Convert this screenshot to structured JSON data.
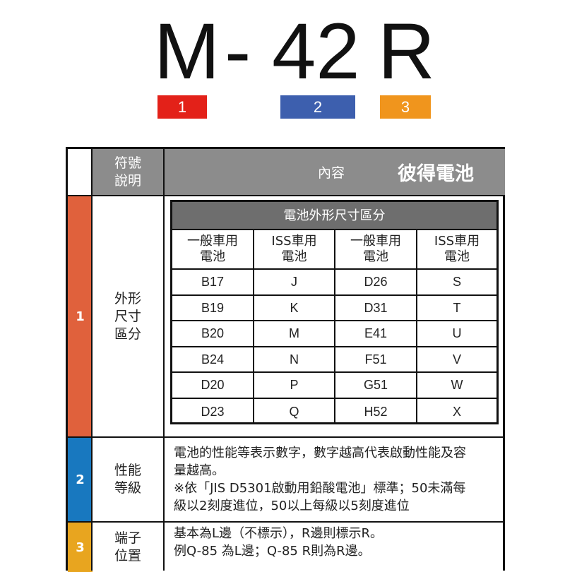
{
  "title": {
    "parts": [
      "M",
      "-",
      "42",
      "R"
    ]
  },
  "boxes": [
    {
      "label": "1",
      "color": "#e32119"
    },
    {
      "label": "2",
      "color": "#3d5fae"
    },
    {
      "label": "3",
      "color": "#f0951d"
    }
  ],
  "header": {
    "symbol_label_1": "符號",
    "symbol_label_2": "說明",
    "content_label": "內容",
    "brand": "彼得電池"
  },
  "rows": [
    {
      "num": "1",
      "color": "#e0613c",
      "label": [
        "外形",
        "尺寸",
        "區分"
      ]
    },
    {
      "num": "2",
      "color": "#1878bf",
      "label": [
        "性能",
        "等級"
      ],
      "lines": [
        "電池的性能等表示數字，數字越高代表啟動性能及容",
        "量越高。",
        "※依「JIS D5301啟動用鉛酸電池」標準；50未滿每",
        "級以2刻度進位，50以上每級以5刻度進位"
      ]
    },
    {
      "num": "3",
      "color": "#e8a51f",
      "label": [
        "端子",
        "位置"
      ],
      "lines": [
        "基本為L邊（不標示），R邊則標示R。",
        "例Q-85 為L邊；Q-85 R則為R邊。"
      ]
    }
  ],
  "size_table": {
    "title": "電池外形尺寸區分",
    "columns": [
      [
        "一般車用",
        "電池"
      ],
      [
        "ISS車用",
        "電池"
      ],
      [
        "一般車用",
        "電池"
      ],
      [
        "ISS車用",
        "電池"
      ]
    ],
    "rows": [
      [
        "B17",
        "J",
        "D26",
        "S"
      ],
      [
        "B19",
        "K",
        "D31",
        "T"
      ],
      [
        "B20",
        "M",
        "E41",
        "U"
      ],
      [
        "B24",
        "N",
        "F51",
        "V"
      ],
      [
        "D20",
        "P",
        "G51",
        "W"
      ],
      [
        "D23",
        "Q",
        "H52",
        "X"
      ]
    ]
  }
}
